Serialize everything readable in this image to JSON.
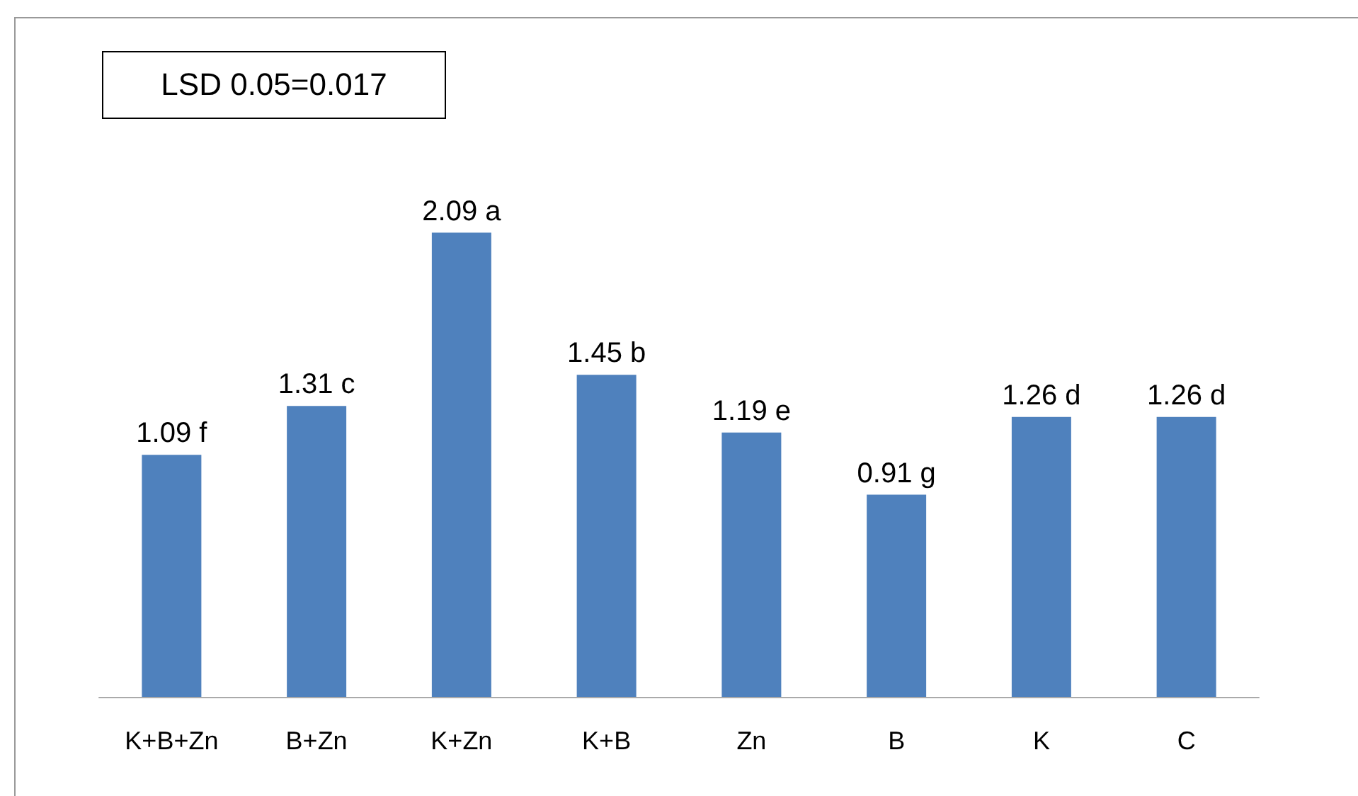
{
  "chart_data": {
    "type": "bar",
    "categories": [
      "K+B+Zn",
      "B+Zn",
      "K+Zn",
      "K+B",
      "Zn",
      "B",
      "K",
      "C"
    ],
    "values": [
      1.09,
      1.31,
      2.09,
      1.45,
      1.19,
      0.91,
      1.26,
      1.26
    ],
    "value_labels": [
      "1.09 f",
      "1.31 c",
      "2.09 a",
      "1.45 b",
      "1.19 e",
      "0.91 g",
      "1.26 d",
      "1.26 d"
    ],
    "color": "#4f81bd",
    "annotations": [
      "LSD 0.05=0.017"
    ]
  }
}
